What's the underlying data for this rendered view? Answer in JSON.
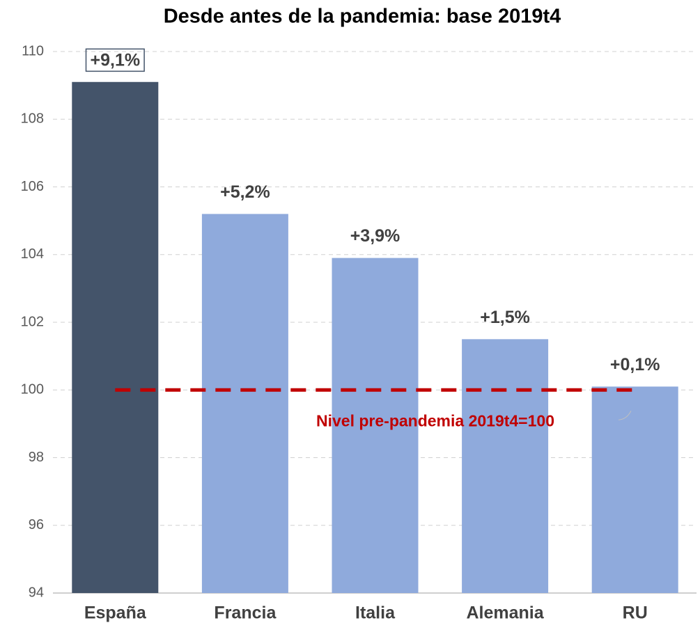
{
  "chart_data": {
    "type": "bar",
    "title": "Desde antes de la pandemia: base 2019t4",
    "categories": [
      "España",
      "Francia",
      "Italia",
      "Alemania",
      "RU"
    ],
    "values": [
      109.1,
      105.2,
      103.9,
      101.5,
      100.1
    ],
    "value_labels": [
      "+9,1%",
      "+5,2%",
      "+3,9%",
      "+1,5%",
      "+0,1%"
    ],
    "colors": [
      "#44546a",
      "#8faadc",
      "#8faadc",
      "#8faadc",
      "#8faadc"
    ],
    "label_box": [
      true,
      false,
      false,
      false,
      false
    ],
    "ylim": [
      94,
      110
    ],
    "yticks": [
      94,
      96,
      98,
      100,
      102,
      104,
      106,
      108,
      110
    ],
    "grid": true,
    "reference_line": {
      "value": 100,
      "label": "Nivel pre-pandemia 2019t4=100",
      "color": "#c00000"
    }
  }
}
